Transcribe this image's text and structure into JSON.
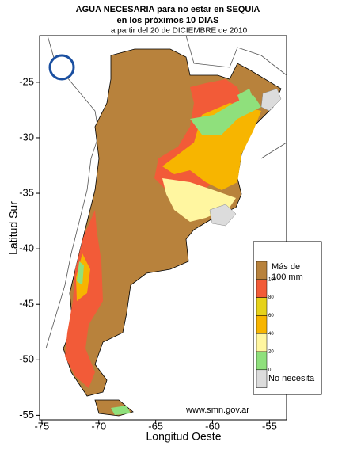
{
  "title_lines": [
    "AGUA NECESARIA para  no estar  en SEQUIA",
    "en los próximos 10 DIAS",
    "a  partir  del  20  de  DICIEMBRE  de  2010"
  ],
  "x_axis": {
    "label": "Longitud Oeste",
    "lim": [
      -75.2,
      -53.5
    ],
    "ticks": [
      -75,
      -70,
      -65,
      -60,
      -55
    ]
  },
  "y_axis": {
    "label": "Latitud Sur",
    "lim": [
      -20.8,
      -55.4
    ],
    "ticks": [
      -25,
      -30,
      -35,
      -40,
      -45,
      -50,
      -55
    ]
  },
  "legend": {
    "top_lines": [
      "Más de",
      "100 mm"
    ],
    "levels": [
      100,
      80,
      60,
      40,
      20,
      0
    ],
    "colors": [
      "#b8823c",
      "#f25b38",
      "#e6d21a",
      "#f7b500",
      "#fff6a0",
      "#8fe07c",
      "#dcdcdc"
    ],
    "bottom_label": "No necesita"
  },
  "source": "www.smn.gov.ar"
}
